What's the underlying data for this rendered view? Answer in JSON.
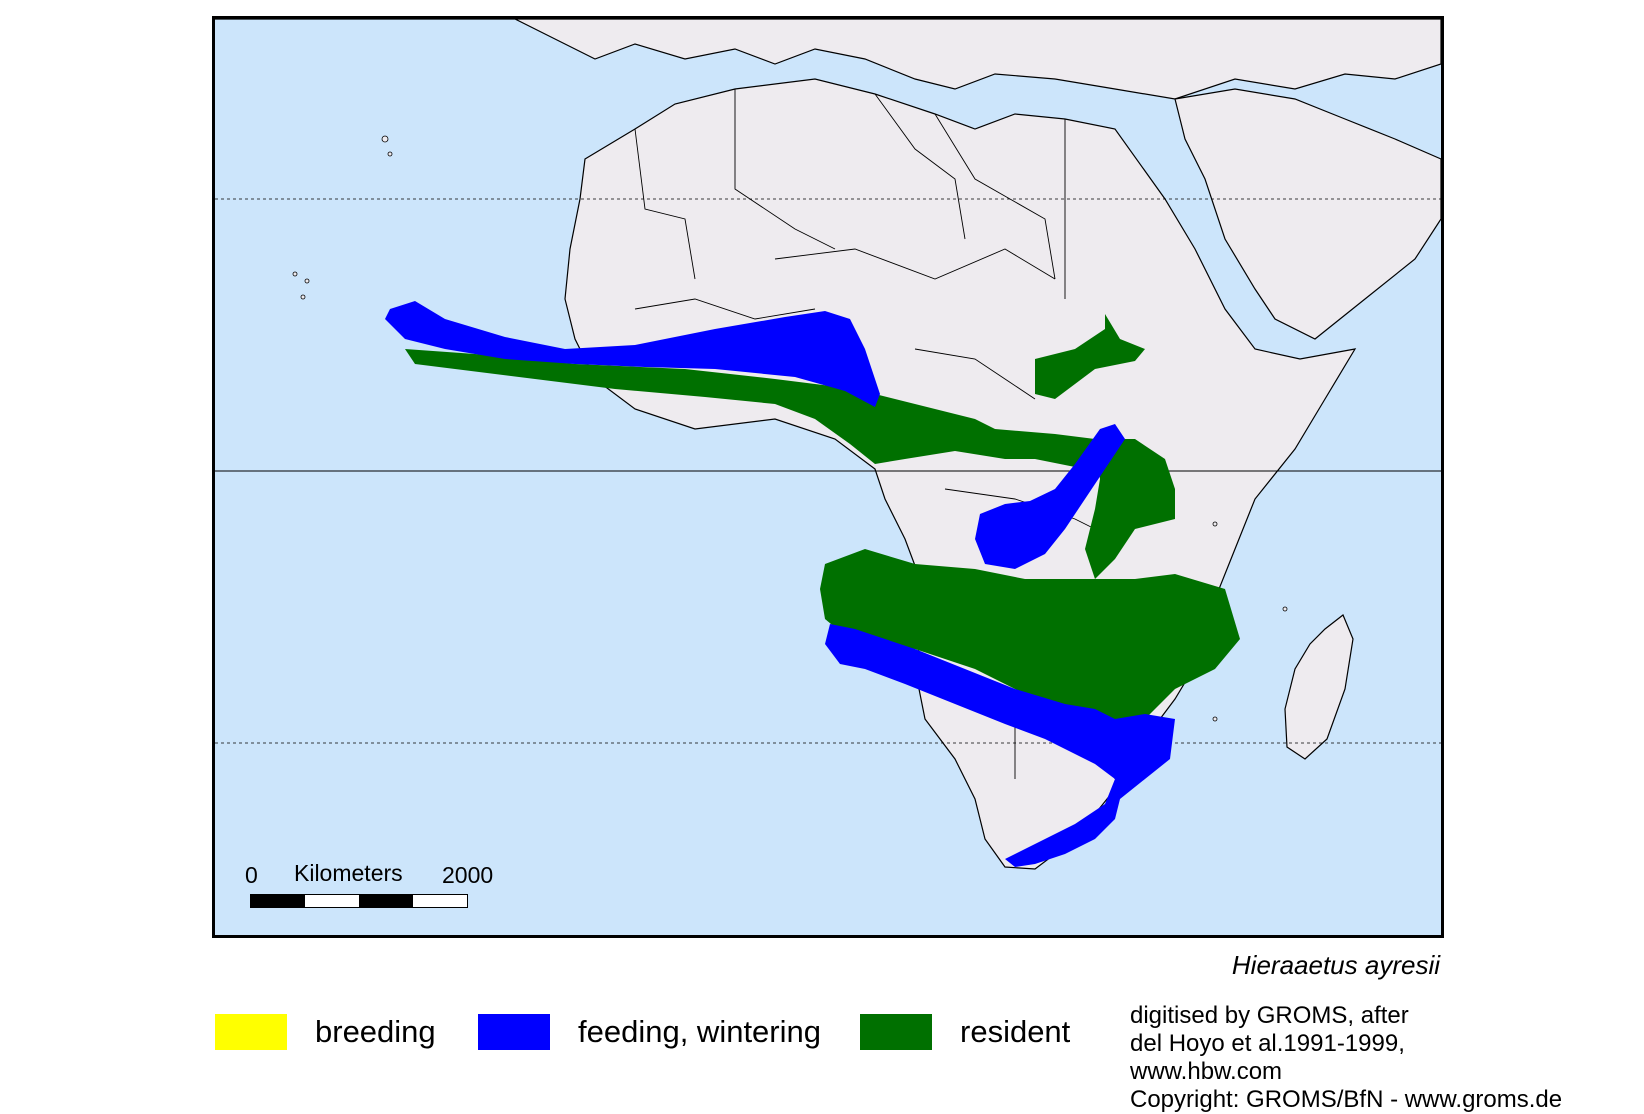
{
  "scale_bar": {
    "start": "0",
    "unit": "Kilometers",
    "end": "2000"
  },
  "species": "Hieraaetus ayresii",
  "legend": [
    {
      "key": "breeding",
      "label": "breeding",
      "color": "#ffff00"
    },
    {
      "key": "feeding",
      "label": "feeding, wintering",
      "color": "#0000ff"
    },
    {
      "key": "resident",
      "label": "resident",
      "color": "#007000"
    }
  ],
  "credits": [
    "digitised by GROMS, after",
    "del Hoyo et al.1991-1999,",
    "www.hbw.com",
    "Copyright: GROMS/BfN - www.groms.de"
  ],
  "colors": {
    "ocean": "#cce5fb",
    "land": "#eeebef",
    "border": "#000000"
  }
}
